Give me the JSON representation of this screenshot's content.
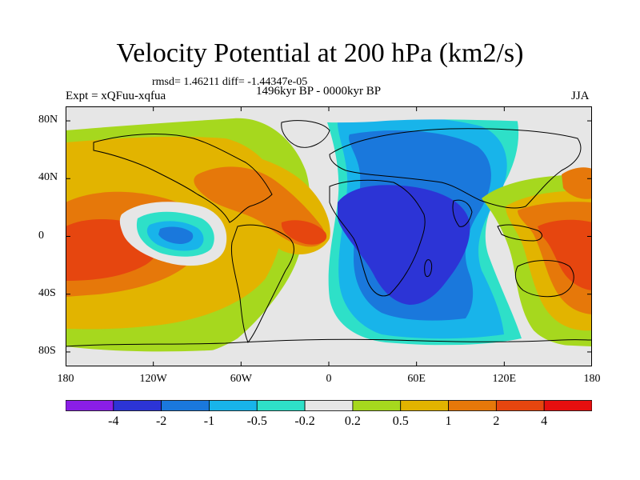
{
  "title": "Velocity Potential at 200 hPa (km2/s)",
  "stats": "rmsd= 1.46211 diff= -1.44347e-05",
  "period": "1496kyr BP - 0000kyr BP",
  "experiment": "Expt = xQFuu-xqfua",
  "season": "JJA",
  "map": {
    "lon_range": [
      -180,
      180
    ],
    "lat_range": [
      -90,
      90
    ],
    "y_ticks": [
      {
        "value": 80,
        "label": "80N"
      },
      {
        "value": 40,
        "label": "40N"
      },
      {
        "value": 0,
        "label": "0"
      },
      {
        "value": -40,
        "label": "40S"
      },
      {
        "value": -80,
        "label": "80S"
      }
    ],
    "x_ticks": [
      {
        "value": -180,
        "label": "180"
      },
      {
        "value": -120,
        "label": "120W"
      },
      {
        "value": -60,
        "label": "60W"
      },
      {
        "value": 0,
        "label": "0"
      },
      {
        "value": 60,
        "label": "60E"
      },
      {
        "value": 120,
        "label": "120E"
      },
      {
        "value": 180,
        "label": "180"
      }
    ]
  },
  "colorbar": {
    "colors": [
      "#8a1ee6",
      "#2c34d6",
      "#1a78dc",
      "#18b4ea",
      "#2ee0c8",
      "#e6e6e6",
      "#a6d81e",
      "#e2b400",
      "#e6780a",
      "#e6460f",
      "#e60f0f"
    ],
    "labels": [
      "-4",
      "-2",
      "-1",
      "-0.5",
      "-0.2",
      "0.2",
      "0.5",
      "1",
      "2",
      "4"
    ]
  },
  "chart_data": {
    "type": "heatmap",
    "variable": "Velocity Potential at 200 hPa",
    "units": "km2/s",
    "levels": [
      -4,
      -2,
      -1,
      -0.5,
      -0.2,
      0.2,
      0.5,
      1,
      2,
      4
    ],
    "features": [
      {
        "name": "negative centre Africa / Indian Ocean",
        "lon": 40,
        "lat": 0,
        "value": -3
      },
      {
        "name": "negative centre eastern Pacific",
        "lon": -110,
        "lat": 0,
        "value": -1.2
      },
      {
        "name": "positive centre Caribbean / tropical Atlantic",
        "lon": -70,
        "lat": 20,
        "value": 2
      },
      {
        "name": "positive centre West African coast",
        "lon": -20,
        "lat": 0,
        "value": 3
      },
      {
        "name": "positive centre central Pacific",
        "lon": -165,
        "lat": -10,
        "value": 3.5
      },
      {
        "name": "positive centre western Pacific / Maritime Continent",
        "lon": 165,
        "lat": -5,
        "value": 3.5
      }
    ]
  }
}
